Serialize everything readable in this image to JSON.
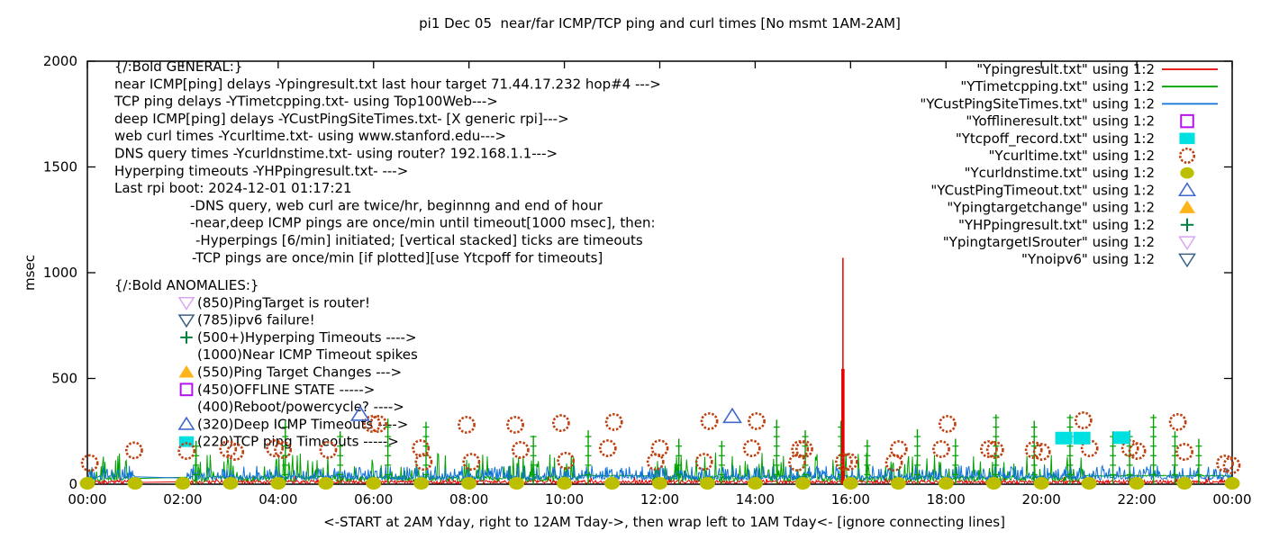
{
  "title": "pi1 Dec 05  near/far ICMP/TCP ping and curl times [No msmt 1AM-2AM]",
  "y_axis": {
    "label": "msec",
    "ticks": [
      0,
      500,
      1000,
      1500,
      2000
    ],
    "max": 2000
  },
  "x_axis": {
    "tick_labels": [
      "00:00",
      "02:00",
      "04:00",
      "06:00",
      "08:00",
      "10:00",
      "12:00",
      "14:00",
      "16:00",
      "18:00",
      "20:00",
      "22:00",
      "00:00"
    ],
    "caption": "<-START at 2AM Yday, right to 12AM Tday->, then wrap left to 1AM Tday<- [ignore connecting lines]"
  },
  "annotations": {
    "general": {
      "header": "{/:Bold GENERAL:}",
      "lines": [
        "near ICMP[ping] delays -Ypingresult.txt last hour target 71.44.17.232 hop#4 --->",
        "TCP ping delays -YTimetcpping.txt- using Top100Web--->",
        "deep ICMP[ping] delays -YCustPingSiteTimes.txt- [X generic rpi]--->",
        "web curl times -Ycurltime.txt- using www.stanford.edu--->",
        "DNS query times -Ycurldnstime.txt- using router? 192.168.1.1--->",
        "Hyperping timeouts -YHPpingresult.txt- --->",
        "Last rpi boot: 2024-12-01 01:17:21"
      ],
      "indented_lines": [
        "-DNS query, web curl are twice/hr, beginnng and end of hour",
        "-near,deep ICMP pings are once/min until timeout[1000 msec], then:",
        "-Hyperpings [6/min] initiated; [vertical stacked] ticks are timeouts",
        "-TCP pings are once/min [if plotted][use Ytcpoff for timeouts]"
      ]
    },
    "anomalies": {
      "header": "{/:Bold ANOMALIES:}",
      "items": [
        {
          "marker": "triangle-down-open",
          "color": "#d8a7f0",
          "label": "(850)PingTarget is router!"
        },
        {
          "marker": "triangle-down-open",
          "color": "#396083",
          "label": "(785)ipv6 failure!"
        },
        {
          "marker": "plus",
          "color": "#008040",
          "label": "(500+)Hyperping Timeouts ---->"
        },
        {
          "marker": "none",
          "color": "",
          "label": "(1000)Near ICMP Timeout spikes"
        },
        {
          "marker": "triangle-up-filled",
          "color": "#ffb31a",
          "label": "(550)Ping Target Changes --->"
        },
        {
          "marker": "square-open",
          "color": "#b413ec",
          "label": "(450)OFFLINE STATE ----->"
        },
        {
          "marker": "none",
          "color": "",
          "label": "(400)Reboot/powercycle? ---->"
        },
        {
          "marker": "triangle-up-open",
          "color": "#4169cd",
          "label": "(320)Deep ICMP Timeouts ---->"
        },
        {
          "marker": "square-filled",
          "color": "#00e0e0",
          "label": "(220)TCP ping Timeouts ----->"
        }
      ]
    }
  },
  "legend": [
    {
      "label": "\"Ypingresult.txt\" using 1:2",
      "sample": "line",
      "color": "#e60000"
    },
    {
      "label": "\"YTimetcpping.txt\" using 1:2",
      "sample": "line",
      "color": "#00a200"
    },
    {
      "label": "\"YCustPingSiteTimes.txt\" using 1:2",
      "sample": "line",
      "color": "#0f72d8"
    },
    {
      "label": "\"Yofflineresult.txt\" using 1:2",
      "sample": "square-open",
      "color": "#b413ec"
    },
    {
      "label": "\"Ytcpoff_record.txt\" using 1:2",
      "sample": "square-filled",
      "color": "#00e0e0"
    },
    {
      "label": "\"Ycurltime.txt\" using 1:2",
      "sample": "circle-open",
      "color": "#bf4010"
    },
    {
      "label": "\"Ycurldnstime.txt\" using 1:2",
      "sample": "circle-filled",
      "color": "#bcbe00"
    },
    {
      "label": "\"YCustPingTimeout.txt\" using 1:2",
      "sample": "triangle-up-open",
      "color": "#4169cd"
    },
    {
      "label": "\"Ypingtargetchange\" using 1:2",
      "sample": "triangle-up-filled",
      "color": "#ffb31a"
    },
    {
      "label": "\"YHPpingresult.txt\" using 1:2",
      "sample": "plus",
      "color": "#008040"
    },
    {
      "label": "\"YpingtargetISrouter\" using 1:2",
      "sample": "triangle-down-open",
      "color": "#d8a7f0"
    },
    {
      "label": "\"Ynoipv6\" using 1:2",
      "sample": "triangle-down-open",
      "color": "#396083"
    }
  ],
  "chart_data": {
    "type": "line",
    "x_unit": "time of day, hours 0-24",
    "ylabel": "msec",
    "ylim": [
      0,
      2000
    ],
    "no_measurement_gap_hours": [
      1.0,
      2.05
    ],
    "noise_series": [
      {
        "name": "Ypingresult.txt",
        "color": "#e60000",
        "style": "noisy-line",
        "base": 3,
        "amp": 16,
        "spike_p": 0.03,
        "spike_base": 22,
        "spike_amp": 18,
        "seed": 11
      },
      {
        "name": "YTimetcpping.txt",
        "color": "#00a200",
        "style": "noisy-line",
        "base": 13,
        "amp": 28,
        "spike_p": 0.15,
        "spike_base": 55,
        "spike_amp": 95,
        "seed": 22,
        "flat_segments": [
          [
            10.3,
            11.8,
            40
          ],
          [
            20.9,
            23.95,
            40
          ]
        ]
      },
      {
        "name": "YCustPingSiteTimes.txt",
        "color": "#0f72d8",
        "style": "noisy-line",
        "base": 20,
        "amp": 22,
        "spike_p": 0.27,
        "spike_base": 46,
        "spike_amp": 42,
        "seed": 33
      }
    ],
    "events": {
      "near_icmp_timeout_spike": {
        "series": "Ypingresult.txt",
        "hour": 15.84,
        "peak_msec": 1070,
        "thick_to_msec": 545
      },
      "hyperping_timeout_columns": {
        "series": "YHPpingresult.txt",
        "color": "#00a200",
        "columns": [
          [
            2.28,
            205
          ],
          [
            4.15,
            300
          ],
          [
            5.3,
            250
          ],
          [
            6.3,
            310
          ],
          [
            7.1,
            295
          ],
          [
            9.35,
            230
          ],
          [
            10.5,
            255
          ],
          [
            12.4,
            215
          ],
          [
            13.3,
            205
          ],
          [
            14.45,
            305
          ],
          [
            15.05,
            255
          ],
          [
            15.8,
            300
          ],
          [
            16.35,
            210
          ],
          [
            17.4,
            260
          ],
          [
            18.2,
            215
          ],
          [
            19.05,
            330
          ],
          [
            19.85,
            300
          ],
          [
            20.6,
            330
          ],
          [
            21.5,
            250
          ],
          [
            21.85,
            255
          ],
          [
            22.35,
            330
          ],
          [
            22.8,
            250
          ],
          [
            23.3,
            215
          ]
        ]
      }
    },
    "point_series": [
      {
        "name": "Ycurltime.txt",
        "marker": "circle-open",
        "color": "#bf4010",
        "points": [
          [
            0.05,
            100
          ],
          [
            0.98,
            160
          ],
          [
            2.08,
            157
          ],
          [
            2.95,
            166
          ],
          [
            3.1,
            153
          ],
          [
            3.93,
            170
          ],
          [
            4.1,
            162
          ],
          [
            5.05,
            162
          ],
          [
            5.97,
            285
          ],
          [
            6.1,
            285
          ],
          [
            6.99,
            170
          ],
          [
            7.05,
            106
          ],
          [
            7.95,
            281
          ],
          [
            8.05,
            106
          ],
          [
            8.97,
            281
          ],
          [
            9.08,
            162
          ],
          [
            9.93,
            289
          ],
          [
            10.03,
            111
          ],
          [
            10.91,
            170
          ],
          [
            11.04,
            294
          ],
          [
            11.91,
            106
          ],
          [
            12.0,
            170
          ],
          [
            12.93,
            106
          ],
          [
            13.04,
            298
          ],
          [
            13.93,
            170
          ],
          [
            14.03,
            298
          ],
          [
            14.88,
            102
          ],
          [
            14.94,
            166
          ],
          [
            15.03,
            166
          ],
          [
            15.86,
            106
          ],
          [
            15.97,
            106
          ],
          [
            16.91,
            102
          ],
          [
            17.01,
            166
          ],
          [
            17.9,
            166
          ],
          [
            18.03,
            285
          ],
          [
            18.9,
            166
          ],
          [
            19.03,
            162
          ],
          [
            19.84,
            162
          ],
          [
            20.01,
            153
          ],
          [
            20.88,
            302
          ],
          [
            21.01,
            170
          ],
          [
            21.86,
            170
          ],
          [
            22.01,
            157
          ],
          [
            22.86,
            294
          ],
          [
            23.0,
            153
          ],
          [
            23.85,
            98
          ],
          [
            23.99,
            89
          ]
        ]
      },
      {
        "name": "Ycurldnstime.txt",
        "marker": "circle-filled",
        "color": "#bcbe00",
        "points": [
          [
            0,
            4
          ],
          [
            1,
            4
          ],
          [
            2,
            4
          ],
          [
            3,
            4
          ],
          [
            4,
            4
          ],
          [
            5,
            4
          ],
          [
            6,
            4
          ],
          [
            7,
            4
          ],
          [
            8,
            4
          ],
          [
            9,
            4
          ],
          [
            10,
            4
          ],
          [
            11,
            4
          ],
          [
            12,
            4
          ],
          [
            13,
            4
          ],
          [
            14,
            4
          ],
          [
            15,
            4
          ],
          [
            16,
            4
          ],
          [
            17,
            4
          ],
          [
            18,
            4
          ],
          [
            19,
            4
          ],
          [
            20,
            4
          ],
          [
            21,
            4
          ],
          [
            22,
            4
          ],
          [
            23,
            4
          ],
          [
            24,
            4
          ]
        ]
      },
      {
        "name": "YCustPingTimeout.txt",
        "marker": "triangle-up-open",
        "color": "#4169cd",
        "points": [
          [
            5.72,
            330
          ],
          [
            13.52,
            320
          ]
        ]
      },
      {
        "name": "Ytcpoff_record.txt",
        "marker": "square-filled",
        "color": "#00e0e0",
        "points": [
          [
            20.47,
            218
          ],
          [
            20.85,
            218
          ],
          [
            21.68,
            220
          ]
        ]
      },
      {
        "name": "Yofflineresult.txt",
        "marker": "square-open",
        "color": "#b413ec",
        "points": []
      },
      {
        "name": "Ypingtargetchange",
        "marker": "triangle-up-filled",
        "color": "#ffb31a",
        "points": []
      },
      {
        "name": "YpingtargetISrouter",
        "marker": "triangle-down-open",
        "color": "#d8a7f0",
        "points": []
      },
      {
        "name": "Ynoipv6",
        "marker": "triangle-down-open",
        "color": "#396083",
        "points": []
      }
    ]
  }
}
